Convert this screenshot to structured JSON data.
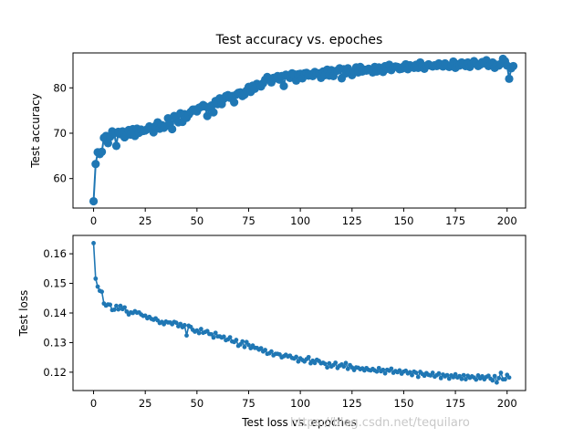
{
  "figure": {
    "watermark": "https://blog.csdn.net/tequilaro"
  },
  "colors": {
    "series": "#1f77b4",
    "axis": "#000000",
    "watermark": "#c8c8c8"
  },
  "chart_data": [
    {
      "type": "line",
      "markers": true,
      "title": "Test accuracy vs. epoches",
      "xlabel": "",
      "ylabel": "Test accuracy",
      "xlim": [
        -9.95,
        208.95
      ],
      "ylim": [
        53.5,
        87.7
      ],
      "xticks": [
        0,
        25,
        50,
        75,
        100,
        125,
        150,
        175,
        200
      ],
      "yticks": [
        60,
        70,
        80
      ],
      "grid": false,
      "x_range": [
        0,
        199
      ],
      "series": [
        {
          "values": [
            55.0,
            63.2,
            65.8,
            65.4,
            65.9,
            69.0,
            69.4,
            67.8,
            69.2,
            70.4,
            70.0,
            67.2,
            70.3,
            69.8,
            70.4,
            69.1,
            69.6,
            70.7,
            69.7,
            70.9,
            69.4,
            71.0,
            70.1,
            70.8,
            70.5,
            70.6,
            70.9,
            71.5,
            71.0,
            70.2,
            71.6,
            72.4,
            71.0,
            71.8,
            71.2,
            71.6,
            73.3,
            72.2,
            70.9,
            73.8,
            73.2,
            72.4,
            74.4,
            72.5,
            74.2,
            73.4,
            74.1,
            74.7,
            75.2,
            75.2,
            74.8,
            75.6,
            75.8,
            76.2,
            75.9,
            73.8,
            75.6,
            76.1,
            74.6,
            77.1,
            76.4,
            77.7,
            76.4,
            77.6,
            78.2,
            78.4,
            77.8,
            78.2,
            76.8,
            78.5,
            78.9,
            79.0,
            78.2,
            78.5,
            79.4,
            80.2,
            79.1,
            80.5,
            79.8,
            80.9,
            80.6,
            80.3,
            81.0,
            81.8,
            82.4,
            82.0,
            81.2,
            82.2,
            82.1,
            82.6,
            81.8,
            82.6,
            80.4,
            82.9,
            82.7,
            82.2,
            83.2,
            83.0,
            81.6,
            83.0,
            83.1,
            82.1,
            83.2,
            83.3,
            82.7,
            83.0,
            82.6,
            83.5,
            83.1,
            83.2,
            82.2,
            83.6,
            82.8,
            84.0,
            82.7,
            83.9,
            82.6,
            83.7,
            83.8,
            84.3,
            82.1,
            84.1,
            83.2,
            84.3,
            83.4,
            82.8,
            83.6,
            84.5,
            83.4,
            84.6,
            83.6,
            84.0,
            83.8,
            84.2,
            84.0,
            83.4,
            84.6,
            83.6,
            84.5,
            84.2,
            83.5,
            84.8,
            84.2,
            85.1,
            83.9,
            84.5,
            84.7,
            84.6,
            84.1,
            84.2,
            84.7,
            85.2,
            84.1,
            85.0,
            84.6,
            84.4,
            85.1,
            84.4,
            85.6,
            84.8,
            84.2,
            84.9,
            85.2,
            84.9,
            84.7,
            85.0,
            84.8,
            85.4,
            85.1,
            84.7,
            85.4,
            84.9,
            84.6,
            85.0,
            85.8,
            84.4,
            85.2,
            84.9,
            85.6,
            85.4,
            84.8,
            85.6,
            84.6,
            85.2,
            85.9,
            85.4,
            84.8,
            85.1,
            85.7,
            85.4,
            86.1,
            84.8,
            85.2,
            85.6,
            84.4,
            85.1,
            84.9,
            85.3,
            86.4,
            85.9,
            84.9,
            82.0,
            84.3,
            84.8
          ]
        }
      ]
    },
    {
      "type": "line",
      "markers": true,
      "title": "Test loss vs. epoches",
      "xlabel": "",
      "ylabel": "Test loss",
      "xlim": [
        -9.95,
        208.95
      ],
      "ylim": [
        0.1138,
        0.1662
      ],
      "xticks": [
        0,
        25,
        50,
        75,
        100,
        125,
        150,
        175,
        200
      ],
      "yticks": [
        0.12,
        0.13,
        0.14,
        0.15,
        0.16
      ],
      "grid": false,
      "x_range": [
        0,
        199
      ],
      "series": [
        {
          "values": [
            0.1636,
            0.1516,
            0.1489,
            0.1475,
            0.1472,
            0.1432,
            0.1425,
            0.1429,
            0.1428,
            0.141,
            0.1411,
            0.1424,
            0.1412,
            0.1424,
            0.1413,
            0.1419,
            0.1405,
            0.1395,
            0.1402,
            0.14,
            0.1406,
            0.1401,
            0.1402,
            0.1395,
            0.139,
            0.1391,
            0.1382,
            0.1387,
            0.138,
            0.1377,
            0.1382,
            0.1375,
            0.1366,
            0.137,
            0.1362,
            0.1371,
            0.1368,
            0.1368,
            0.1362,
            0.137,
            0.1367,
            0.1355,
            0.1363,
            0.1352,
            0.1359,
            0.1324,
            0.1357,
            0.1353,
            0.1343,
            0.1337,
            0.1341,
            0.1332,
            0.1346,
            0.1333,
            0.1336,
            0.1339,
            0.1329,
            0.1328,
            0.1317,
            0.1333,
            0.1321,
            0.1321,
            0.1317,
            0.132,
            0.1308,
            0.1311,
            0.1318,
            0.1304,
            0.1302,
            0.1309,
            0.1289,
            0.1294,
            0.1304,
            0.1285,
            0.1302,
            0.1292,
            0.1281,
            0.129,
            0.1282,
            0.1282,
            0.1276,
            0.1281,
            0.127,
            0.1275,
            0.1262,
            0.1264,
            0.127,
            0.1257,
            0.1262,
            0.1262,
            0.126,
            0.125,
            0.1254,
            0.1259,
            0.1253,
            0.1256,
            0.1248,
            0.1246,
            0.1252,
            0.1236,
            0.1247,
            0.1241,
            0.1236,
            0.1244,
            0.1251,
            0.123,
            0.1239,
            0.1231,
            0.1242,
            0.1238,
            0.123,
            0.1232,
            0.1228,
            0.1216,
            0.123,
            0.1219,
            0.1224,
            0.1232,
            0.1214,
            0.1222,
            0.1226,
            0.1219,
            0.1231,
            0.1211,
            0.1224,
            0.1216,
            0.1207,
            0.1216,
            0.1215,
            0.121,
            0.1213,
            0.1206,
            0.1214,
            0.1208,
            0.1206,
            0.1211,
            0.1206,
            0.1202,
            0.1214,
            0.1203,
            0.1208,
            0.1196,
            0.1208,
            0.1205,
            0.1212,
            0.1198,
            0.1204,
            0.12,
            0.1206,
            0.1195,
            0.1202,
            0.1205,
            0.1196,
            0.12,
            0.119,
            0.1202,
            0.1198,
            0.1184,
            0.1201,
            0.1194,
            0.1188,
            0.1197,
            0.1191,
            0.1189,
            0.1198,
            0.1185,
            0.119,
            0.1196,
            0.118,
            0.1192,
            0.1186,
            0.119,
            0.1178,
            0.1189,
            0.1183,
            0.1193,
            0.1182,
            0.1187,
            0.1177,
            0.119,
            0.1176,
            0.1188,
            0.1181,
            0.1186,
            0.1182,
            0.1175,
            0.1189,
            0.1179,
            0.1186,
            0.1176,
            0.1184,
            0.1188,
            0.1178,
            0.1172,
            0.1187,
            0.1165,
            0.118,
            0.1198,
            0.1176,
            0.1176,
            0.1191,
            0.1182
          ]
        }
      ]
    }
  ]
}
